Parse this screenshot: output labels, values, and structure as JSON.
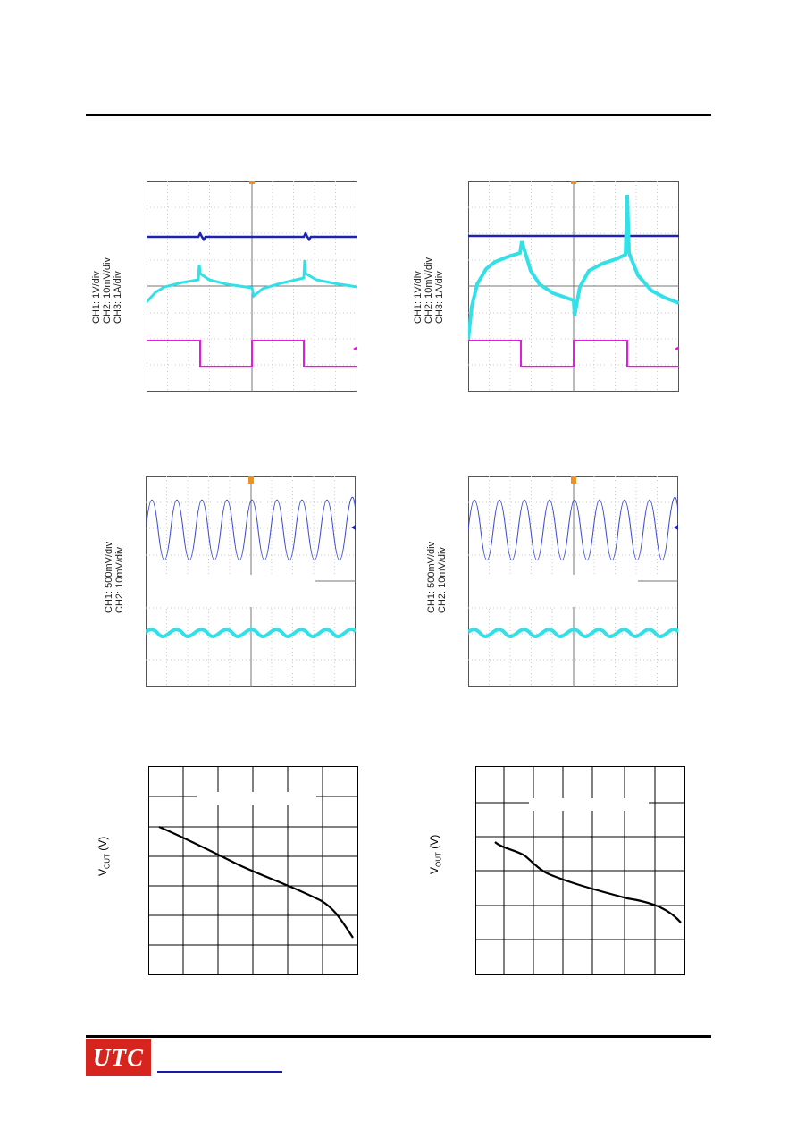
{
  "scopes": [
    {
      "labels": [
        "CH1: 1V/div",
        "CH2: 10mV/div",
        "CH3: 1A/div"
      ]
    },
    {
      "labels": [
        "CH1: 1V/div",
        "CH2: 10mV/div",
        "CH3: 1A/div"
      ]
    },
    {
      "labels": [
        "CH1: 500mV/div",
        "CH2: 10mV/div"
      ]
    },
    {
      "labels": [
        "CH1: 500mV/div",
        "CH2: 10mV/div"
      ]
    }
  ],
  "charts": {
    "left": {
      "ylabel_main": "V",
      "ylabel_sub": "OUT",
      "ylabel_unit": " (V)"
    },
    "right": {
      "ylabel_main": "V",
      "ylabel_sub": "OUT",
      "ylabel_unit": " (V)"
    }
  },
  "footer": {
    "logo_text": "UTC",
    "website": ""
  },
  "colors": {
    "ch1": "#1c23b3",
    "ch2": "#34e0e8",
    "ch3": "#e21be0",
    "logo": "#d6241f"
  }
}
